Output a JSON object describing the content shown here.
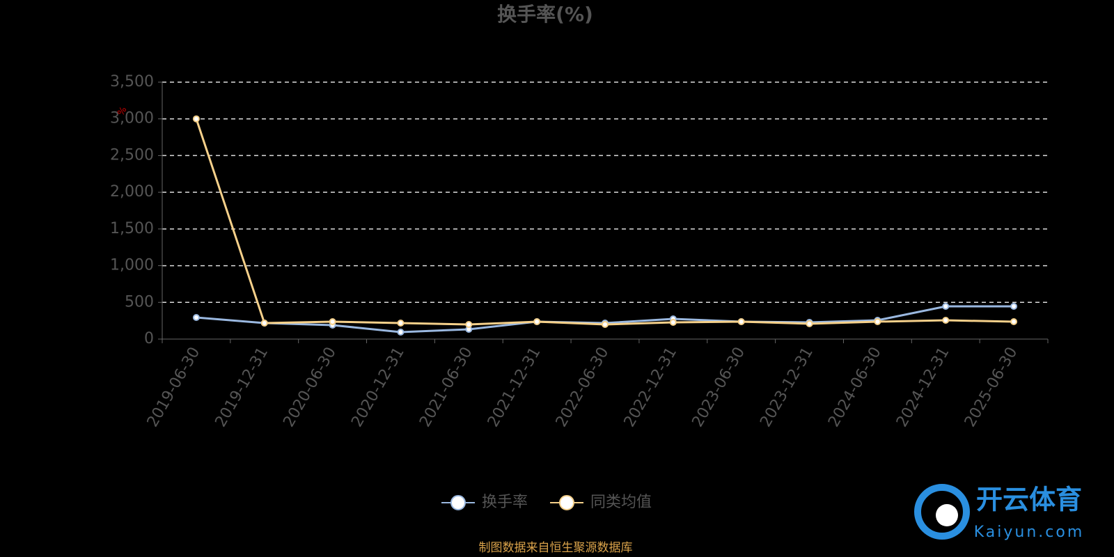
{
  "chart_data": {
    "type": "line",
    "title": "换手率(%)",
    "ylabel": "%",
    "categories": [
      "2019-06-30",
      "2019-12-31",
      "2020-06-30",
      "2020-12-31",
      "2021-06-30",
      "2021-12-31",
      "2022-06-30",
      "2022-12-31",
      "2023-06-30",
      "2023-12-31",
      "2024-06-30",
      "2024-12-31",
      "2025-06-30"
    ],
    "series": [
      {
        "name": "换手率",
        "color": "#9ab8e0",
        "values": [
          294,
          218,
          190,
          95,
          133,
          237,
          218,
          275,
          237,
          228,
          256,
          446,
          446
        ]
      },
      {
        "name": "同类均值",
        "color": "#f5d08a",
        "values": [
          3000,
          218,
          237,
          218,
          199,
          237,
          199,
          228,
          237,
          209,
          237,
          256,
          237
        ]
      }
    ],
    "ylim": [
      0,
      3500
    ],
    "yticks": [
      0,
      500,
      {
        "value": 1000,
        "label": "1,000"
      },
      {
        "value": 1500,
        "label": "1,500"
      },
      {
        "value": 2000,
        "label": "2,000"
      },
      {
        "value": 2500,
        "label": "2,500"
      },
      {
        "value": 3000,
        "label": "3,000"
      },
      {
        "value": 3500,
        "label": "3,500"
      }
    ],
    "grid": true,
    "legend": "bottom",
    "source": "制图数据来自恒生聚源数据库",
    "watermark": {
      "brand": "开云体育",
      "site": "Kaiyun.com"
    }
  }
}
